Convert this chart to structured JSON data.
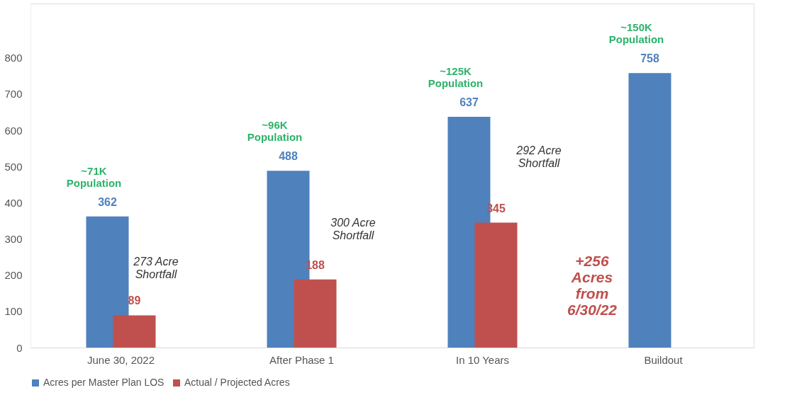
{
  "chart_data": {
    "type": "bar",
    "categories": [
      "June 30, 2022",
      "After Phase 1",
      "In 10 Years",
      "Buildout"
    ],
    "series": [
      {
        "name": "Acres per Master Plan LOS",
        "color": "#4f81bd",
        "values": [
          362,
          488,
          637,
          758
        ]
      },
      {
        "name": "Actual / Projected Acres",
        "color": "#c0504d",
        "values": [
          89,
          188,
          345,
          null
        ]
      }
    ],
    "ylim": [
      0,
      950
    ],
    "yticks": [
      0,
      100,
      200,
      300,
      400,
      500,
      600,
      700,
      800
    ],
    "data_labels": true,
    "grid": false,
    "legend": "bottom",
    "annotations": [
      {
        "text": "~71K\nPopulation",
        "x": "June 30, 2022",
        "y": 362
      },
      {
        "text": "~96K\nPopulation",
        "x": "After Phase 1",
        "y": 488
      },
      {
        "text": "~125K\nPopulation",
        "x": "In 10 Years",
        "y": 637
      },
      {
        "text": "~150K\nPopulation",
        "x": "Buildout",
        "y": 758
      },
      "273 Acre\nShortfall",
      "300 Acre\nShortfall",
      "292 Acre\nShortfall",
      "+256\nAcres\nfrom\n6/30/22"
    ]
  }
}
